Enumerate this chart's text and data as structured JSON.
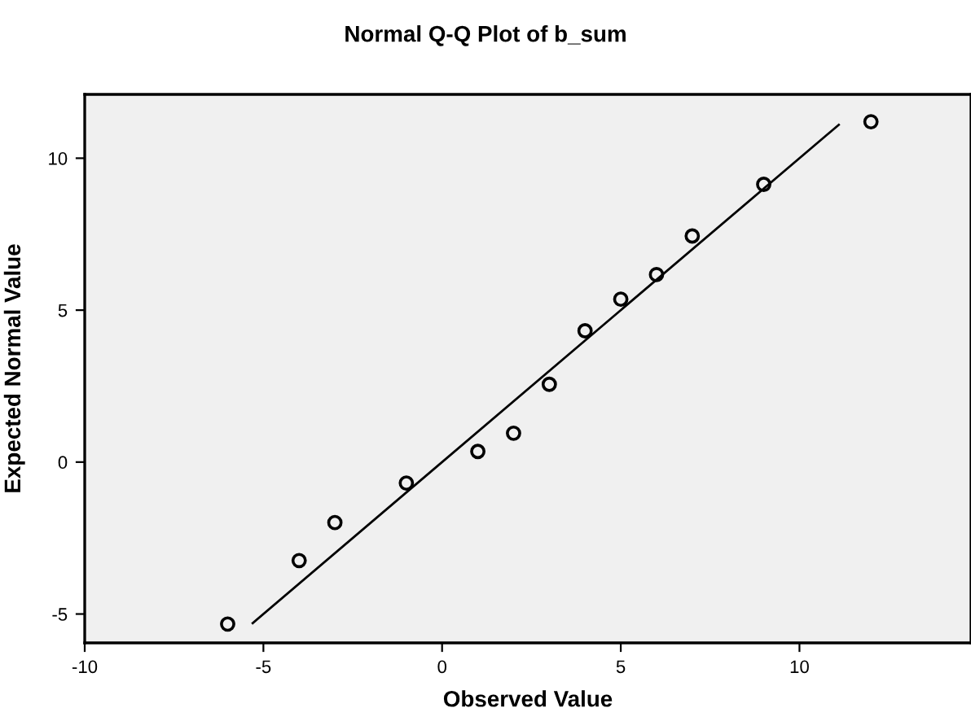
{
  "chart_data": {
    "type": "scatter",
    "title": "Normal Q-Q Plot of b_sum",
    "xlabel": "Observed Value",
    "ylabel": "Expected Normal Value",
    "xlim": [
      -10,
      14.8
    ],
    "ylim": [
      -5.95,
      12.1
    ],
    "xticks": [
      -10,
      -5,
      0,
      5,
      10
    ],
    "yticks": [
      -5,
      0,
      5,
      10
    ],
    "grid": false,
    "series": [
      {
        "marker": "circle",
        "color": "#000000",
        "x": [
          -6,
          -4,
          -3,
          -1,
          1,
          2,
          3,
          4,
          5,
          6,
          7,
          9,
          12
        ],
        "values": [
          -5.33,
          -3.24,
          -1.99,
          -0.69,
          0.35,
          0.95,
          2.56,
          4.32,
          5.36,
          6.17,
          7.44,
          9.14,
          11.2
        ]
      },
      {
        "type": "line",
        "color": "#000000",
        "line_style": "solid",
        "x": [
          -5.3,
          11.1
        ],
        "values": [
          -5.3,
          11.1
        ]
      }
    ]
  }
}
